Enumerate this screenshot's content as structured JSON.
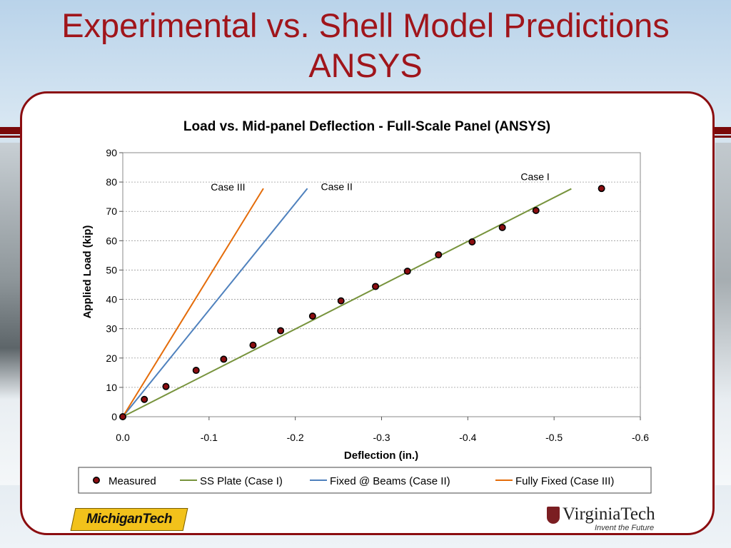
{
  "slide": {
    "title_line1": "Experimental vs. Shell Model Predictions",
    "title_line2": "ANSYS",
    "accent_color": "#a0151b",
    "border_color": "#8b0d10"
  },
  "logos": {
    "left": "MichiganTech",
    "right_name": "VirginiaTech",
    "right_tagline": "Invent the Future"
  },
  "chart_data": {
    "type": "scatter",
    "title": "Load vs. Mid-panel Deflection - Full-Scale Panel (ANSYS)",
    "xlabel": "Deflection (in.)",
    "ylabel": "Applied Load (kip)",
    "xlim": [
      0.0,
      -0.6
    ],
    "ylim": [
      0,
      90
    ],
    "xticks": [
      0.0,
      -0.1,
      -0.2,
      -0.3,
      -0.4,
      -0.5,
      -0.6
    ],
    "xtick_labels": [
      "0.0",
      "-0.1",
      "-0.2",
      "-0.3",
      "-0.4",
      "-0.5",
      "-0.6"
    ],
    "yticks": [
      0,
      10,
      20,
      30,
      40,
      50,
      60,
      70,
      80,
      90
    ],
    "grid": "horizontal dashed",
    "legend_position": "bottom",
    "series": [
      {
        "name": "Measured",
        "kind": "markers",
        "color": "#000000",
        "marker_fill": "#8b0d10",
        "points": [
          [
            0.0,
            0
          ],
          [
            -0.025,
            5.9
          ],
          [
            -0.05,
            10.3
          ],
          [
            -0.085,
            15.8
          ],
          [
            -0.117,
            19.6
          ],
          [
            -0.151,
            24.4
          ],
          [
            -0.183,
            29.3
          ],
          [
            -0.22,
            34.3
          ],
          [
            -0.253,
            39.5
          ],
          [
            -0.293,
            44.4
          ],
          [
            -0.33,
            49.6
          ],
          [
            -0.366,
            55.2
          ],
          [
            -0.405,
            59.6
          ],
          [
            -0.44,
            64.5
          ],
          [
            -0.479,
            70.3
          ],
          [
            -0.555,
            77.8
          ]
        ]
      },
      {
        "name": "SS Plate (Case I)",
        "kind": "line",
        "color": "#77933c",
        "points": [
          [
            0.0,
            0
          ],
          [
            -0.52,
            77.7
          ]
        ]
      },
      {
        "name": "Fixed @ Beams (Case II)",
        "kind": "line",
        "color": "#4f81bd",
        "points": [
          [
            0.0,
            0
          ],
          [
            -0.214,
            77.8
          ]
        ]
      },
      {
        "name": "Fully Fixed (Case III)",
        "kind": "line",
        "color": "#e46c0a",
        "points": [
          [
            0.0,
            0
          ],
          [
            -0.163,
            77.8
          ]
        ]
      }
    ],
    "annotations": [
      {
        "text": "Case I",
        "x": -0.478,
        "y": 80.6
      },
      {
        "text": "Case II",
        "x": -0.248,
        "y": 77.2
      },
      {
        "text": "Case III",
        "x": -0.122,
        "y": 77.1
      }
    ]
  }
}
